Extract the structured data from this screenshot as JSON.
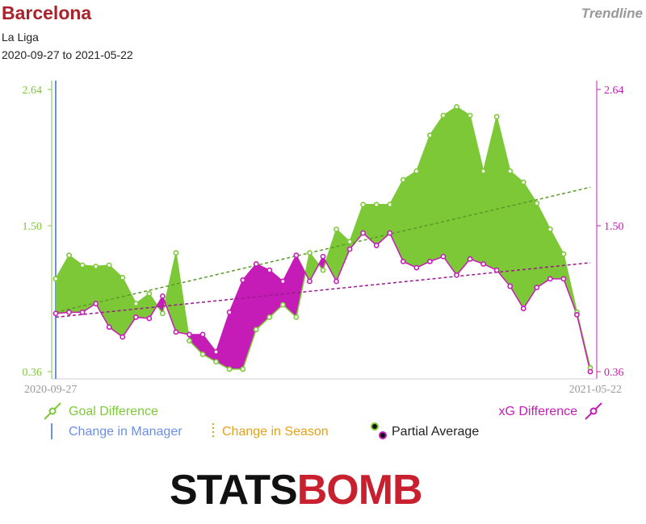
{
  "header": {
    "team": "Barcelona",
    "competition": "La Liga",
    "date_range": "2020-09-27 to 2021-05-22",
    "mode": "Trendline"
  },
  "legend": {
    "goal_difference": "Goal Difference",
    "xg_difference": "xG Difference",
    "change_manager": "Change in Manager",
    "change_season": "Change in Season",
    "partial_average": "Partial Average"
  },
  "logo": {
    "part1": "STATS",
    "part2": "BOMB"
  },
  "colors": {
    "goal": "#7dc837",
    "xg": "#c61cb7",
    "manager": "#6b8fe8",
    "season": "#e3a21a",
    "goal_trend": "#5a9a2a",
    "xg_trend": "#9a1a8c",
    "axis": "#cccccc"
  },
  "chart_data": {
    "type": "area",
    "x_start_label": "2020-09-27",
    "x_end_label": "2021-05-22",
    "ylim": [
      0.36,
      2.64
    ],
    "yticks": [
      "0.36",
      "1.50",
      "2.64"
    ],
    "series": [
      {
        "name": "Goal Difference",
        "values": [
          1.11,
          1.3,
          1.22,
          1.21,
          1.22,
          1.12,
          0.91,
          0.99,
          0.83,
          1.32,
          0.61,
          0.5,
          0.44,
          0.38,
          0.38,
          0.7,
          0.8,
          0.9,
          0.8,
          1.32,
          1.18,
          1.51,
          1.41,
          1.71,
          1.71,
          1.71,
          1.91,
          1.98,
          2.27,
          2.43,
          2.5,
          2.43,
          1.98,
          2.42,
          1.98,
          1.89,
          1.72,
          1.51,
          1.31,
          0.84,
          0.39
        ]
      },
      {
        "name": "xG Difference",
        "values": [
          0.83,
          0.84,
          0.84,
          0.91,
          0.72,
          0.64,
          0.8,
          0.79,
          0.97,
          0.68,
          0.66,
          0.66,
          0.52,
          0.84,
          1.1,
          1.23,
          1.18,
          1.09,
          1.3,
          1.09,
          1.29,
          1.09,
          1.35,
          1.48,
          1.38,
          1.48,
          1.25,
          1.2,
          1.25,
          1.29,
          1.14,
          1.27,
          1.23,
          1.18,
          1.05,
          0.87,
          1.04,
          1.11,
          1.11,
          0.82,
          0.36
        ]
      }
    ],
    "trendlines": [
      {
        "series": "Goal Difference",
        "start": 0.84,
        "end": 1.85
      },
      {
        "series": "xG Difference",
        "start": 0.8,
        "end": 1.24
      }
    ]
  }
}
